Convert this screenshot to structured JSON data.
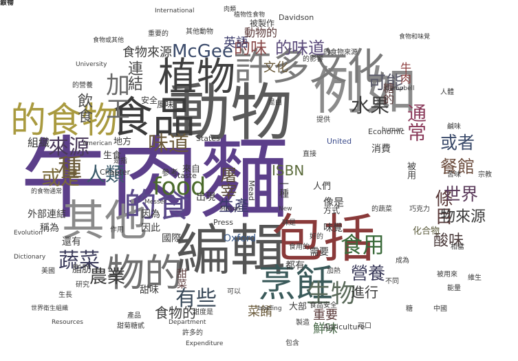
{
  "words": [
    {
      "text": "牛肉麵",
      "color": "#5c3f8a"
    },
    {
      "text": "動物",
      "color": "#5a5a5a"
    },
    {
      "text": "例如",
      "color": "#8b8b8b"
    },
    {
      "text": "食品",
      "color": "#3a3a3a"
    },
    {
      "text": "許多文化",
      "color": "#7a7a7a"
    },
    {
      "text": "植物",
      "color": "#3f3f3f"
    },
    {
      "text": "其他",
      "color": "#8a8a8a"
    },
    {
      "text": "的食物",
      "color": "#a99a3f"
    },
    {
      "text": "編輯",
      "color": "#555555"
    },
    {
      "text": "包括",
      "color": "#8a3a3a"
    },
    {
      "text": "物的",
      "color": "#6f6f6f"
    },
    {
      "text": "烹飪",
      "color": "#3a5a5a"
    },
    {
      "text": "的食",
      "color": "#5a4a8a"
    },
    {
      "text": "food",
      "color": "#4a6a2a"
    },
    {
      "text": "McGee",
      "color": "#3a4a6a"
    },
    {
      "text": "的味道",
      "color": "#5a4a7a"
    },
    {
      "text": "的味",
      "color": "#8a4a4a"
    },
    {
      "text": "味道",
      "color": "#6a5a3a"
    },
    {
      "text": "通常",
      "color": "#8a3a5a"
    },
    {
      "text": "水果",
      "color": "#3a3a3a"
    },
    {
      "text": "或者",
      "color": "#3a4a6a"
    },
    {
      "text": "可能",
      "color": "#5a5a6a"
    },
    {
      "text": "加工",
      "color": "#6a6a6a"
    },
    {
      "text": "蔬菜",
      "color": "#3a3a5a"
    },
    {
      "text": "來源",
      "color": "#4a3a5a"
    },
    {
      "text": "或是",
      "color": "#7a6a3a"
    },
    {
      "text": "種",
      "color": "#6a5a3a"
    },
    {
      "text": "人類",
      "color": "#3a5a6a"
    },
    {
      "text": "生物",
      "color": "#5a6a5a"
    },
    {
      "text": "食用",
      "color": "#3a6a3a"
    },
    {
      "text": "營養",
      "color": "#3a3a5a"
    },
    {
      "text": "條目",
      "color": "#5a3a3a"
    },
    {
      "text": "餐館",
      "color": "#6a4a3a"
    },
    {
      "text": "世界",
      "color": "#5a3a5a"
    },
    {
      "text": "有些",
      "color": "#3a4a5a"
    },
    {
      "text": "農業",
      "color": "#3a3a3a"
    },
    {
      "text": "屠宰",
      "color": "#5a4a3a"
    },
    {
      "text": "生產",
      "color": "#3a3a6a"
    },
    {
      "text": "連結",
      "color": "#4a4a4a"
    },
    {
      "text": "飲食",
      "color": "#4a4a4a"
    },
    {
      "text": "英語",
      "color": "#3a3a6a"
    },
    {
      "text": "ISBN",
      "color": "#5a6a3a"
    },
    {
      "text": "進行",
      "color": "#3a3a3a"
    },
    {
      "text": "重要",
      "color": "#5a3a3a"
    },
    {
      "text": "Oxford",
      "color": "#3a5a8a"
    },
    {
      "text": "酸味",
      "color": "#4a3a3a"
    },
    {
      "text": "物來源",
      "color": "#3a3a3a"
    },
    {
      "text": "食物的",
      "color": "#3a3a3a"
    },
    {
      "text": "食物來源",
      "color": "#3a3a3a"
    },
    {
      "text": "菜餚",
      "color": "#6a5a3a"
    },
    {
      "text": "鮮味",
      "color": "#4a6a4a"
    },
    {
      "text": "文化",
      "color": "#6a5a3a"
    },
    {
      "text": "動物的",
      "color": "#5a3a3a"
    },
    {
      "text": "組織",
      "color": "#3a3a3a"
    },
    {
      "text": "外部連結",
      "color": "#3a3a3a"
    },
    {
      "text": "稱為",
      "color": "#3a3a3a"
    },
    {
      "text": "還有",
      "color": "#3a3a3a"
    },
    {
      "text": "因為",
      "color": "#3a3a3a"
    },
    {
      "text": "因此",
      "color": "#3a3a3a"
    },
    {
      "text": "糖的",
      "color": "#5a3a3a"
    },
    {
      "text": "牛肉",
      "color": "#8a3a3a"
    },
    {
      "text": "像是",
      "color": "#3a3a3a"
    },
    {
      "text": "味覺",
      "color": "#3a3a3a"
    },
    {
      "text": "甜菜",
      "color": "#5a3a3a"
    },
    {
      "text": "國際",
      "color": "#3a3a3a"
    },
    {
      "text": "脂肪",
      "color": "#3a3a3a"
    },
    {
      "text": "甜味",
      "color": "#3a3a3a"
    },
    {
      "text": "化合物",
      "color": "#5a5a3a"
    },
    {
      "text": "消費",
      "color": "#3a3a3a"
    },
    {
      "text": "出現",
      "color": "#3a3a3a"
    },
    {
      "text": "一種",
      "color": "#3a3a3a"
    },
    {
      "text": "需要",
      "color": "#3a3a3a"
    },
    {
      "text": "都有",
      "color": "#3a3a3a"
    },
    {
      "text": "大部",
      "color": "#3a3a3a"
    },
    {
      "text": "被用",
      "color": "#3a3a3a"
    },
    {
      "text": "地方",
      "color": "#3a3a3a"
    },
    {
      "text": "來自",
      "color": "#3a3a3a"
    },
    {
      "text": "生食",
      "color": "#3a3a3a"
    },
    {
      "text": "安全",
      "color": "#3a3a3a"
    },
    {
      "text": "風味",
      "color": "#3a3a3a"
    },
    {
      "text": "人們",
      "color": "#3a3a3a"
    },
    {
      "text": "方式",
      "color": "#3a3a3a"
    },
    {
      "text": "參考",
      "color": "#3a3a3a"
    },
    {
      "text": "被製作",
      "color": "#3a3a3a"
    },
    {
      "text": "Davidson",
      "color": "#3a3a3a"
    },
    {
      "text": "United",
      "color": "#3a4a8a"
    },
    {
      "text": "States",
      "color": "#3a3a3a"
    },
    {
      "text": "Press",
      "color": "#3a3a3a"
    },
    {
      "text": "Mead",
      "color": "#3a3a3a"
    },
    {
      "text": "Chapter",
      "color": "#3a3a3a"
    },
    {
      "text": "Agriculture",
      "color": "#3a3a3a"
    },
    {
      "text": "Economic",
      "color": "#3a3a3a"
    },
    {
      "text": "taste",
      "color": "#3a3a3a"
    },
    {
      "text": "Department",
      "color": "#3a3a3a"
    },
    {
      "text": "Resources",
      "color": "#3a3a3a"
    },
    {
      "text": "Dictionary",
      "color": "#3a3a3a"
    },
    {
      "text": "Evolution",
      "color": "#3a3a3a"
    },
    {
      "text": "American",
      "color": "#3a3a3a"
    },
    {
      "text": "University",
      "color": "#3a3a3a"
    },
    {
      "text": "International",
      "color": "#3a3a3a"
    },
    {
      "text": "Campbell",
      "color": "#3a3a3a"
    },
    {
      "text": "human",
      "color": "#3a3a3a"
    },
    {
      "text": "briefing",
      "color": "#3a3a3a"
    },
    {
      "text": "Expenditure",
      "color": "#3a3a3a"
    },
    {
      "text": "Messer",
      "color": "#3a3a3a"
    },
    {
      "text": "New",
      "color": "#3a3a3a"
    },
    {
      "text": "Mason",
      "color": "#3a3a3a"
    },
    {
      "text": "甜度是",
      "color": "#3a3a3a"
    },
    {
      "text": "甜菊糖甙",
      "color": "#3a3a3a"
    },
    {
      "text": "食品安全",
      "color": "#3a3a3a"
    },
    {
      "text": "許多的",
      "color": "#3a3a3a"
    },
    {
      "text": "能量",
      "color": "#3a3a3a"
    },
    {
      "text": "維生",
      "color": "#3a3a3a"
    },
    {
      "text": "相當",
      "color": "#3a3a3a"
    },
    {
      "text": "好的",
      "color": "#3a3a3a"
    },
    {
      "text": "研究",
      "color": "#3a3a3a"
    },
    {
      "text": "的營養",
      "color": "#3a3a3a"
    },
    {
      "text": "其他動物",
      "color": "#3a3a3a"
    },
    {
      "text": "重要的",
      "color": "#3a3a3a"
    },
    {
      "text": "的影響",
      "color": "#3a3a3a"
    },
    {
      "text": "食物或其他",
      "color": "#3a3a3a"
    },
    {
      "text": "的食物來源",
      "color": "#3a3a3a"
    },
    {
      "text": "被用來",
      "color": "#3a3a3a"
    },
    {
      "text": "苦味",
      "color": "#3a3a3a"
    },
    {
      "text": "鹹味",
      "color": "#3a3a3a"
    },
    {
      "text": "巧克力",
      "color": "#3a3a3a"
    },
    {
      "text": "肉類",
      "color": "#3a3a3a"
    },
    {
      "text": "食物和味覺",
      "color": "#3a3a3a"
    },
    {
      "text": "植物性食物",
      "color": "#3a3a3a"
    },
    {
      "text": "世界衛生組織",
      "color": "#3a3a3a"
    },
    {
      "text": "的食物通常",
      "color": "#3a3a3a"
    },
    {
      "text": "的蔬菜",
      "color": "#3a3a3a"
    },
    {
      "text": "食用的",
      "color": "#3a3a3a"
    },
    {
      "text": "是指",
      "color": "#3a3a3a"
    },
    {
      "text": "是由",
      "color": "#3a3a3a"
    },
    {
      "text": "人體",
      "color": "#3a3a3a"
    },
    {
      "text": "提供",
      "color": "#3a3a3a"
    },
    {
      "text": "直接",
      "color": "#3a3a3a"
    },
    {
      "text": "加熱",
      "color": "#3a3a3a"
    },
    {
      "text": "不同",
      "color": "#3a3a3a"
    },
    {
      "text": "糖",
      "color": "#3a3a3a"
    },
    {
      "text": "味是",
      "color": "#3a3a3a"
    },
    {
      "text": "作用",
      "color": "#3a3a3a"
    },
    {
      "text": "生長",
      "color": "#3a3a3a"
    },
    {
      "text": "美國",
      "color": "#3a3a3a"
    },
    {
      "text": "中國",
      "color": "#3a3a3a"
    },
    {
      "text": "成為",
      "color": "#3a3a3a"
    },
    {
      "text": "產品",
      "color": "#3a3a3a"
    },
    {
      "text": "可以",
      "color": "#3a3a3a"
    },
    {
      "text": "包含",
      "color": "#3a3a3a"
    },
    {
      "text": "製造",
      "color": "#3a3a3a"
    },
    {
      "text": "可口",
      "color": "#3a3a3a"
    },
    {
      "text": "宗教",
      "color": "#3a3a3a"
    },
    {
      "text": "素食",
      "color": "#3a3a3a"
    },
    {
      "text": "取得",
      "color": "#3a3a3a"
    },
    {
      "text": "穀物",
      "color": "#3a3a3a"
    }
  ]
}
